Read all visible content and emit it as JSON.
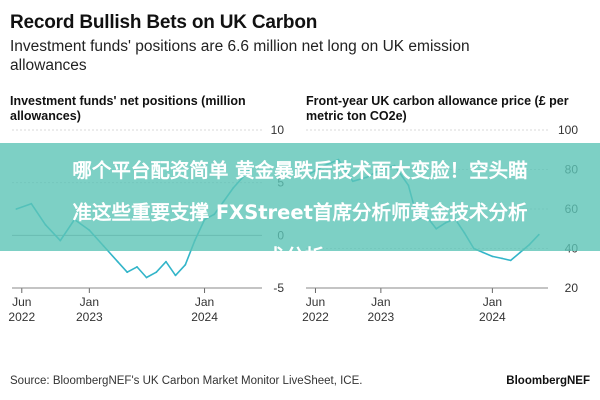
{
  "header": {
    "title": "Record Bullish Bets on UK Carbon",
    "subtitle": "Investment funds' positions are 6.6 million net long on UK emission allowances"
  },
  "overlay": {
    "line1": "哪个平台配资简单 黄金暴跌后技术面大变脸！空头瞄",
    "line2": "准这些重要支撑 FXStreet首席分析师黄金技术分析",
    "line3": "术分析"
  },
  "footer": {
    "source": "Source: BloombergNEF's UK Carbon Market Monitor LiveSheet, ICE.",
    "brand": "BloombergNEF"
  },
  "colors": {
    "line": "#33b5c9",
    "grid": "#cccccc",
    "zero": "#999999",
    "banner": "#5cc4b6"
  },
  "chart_data": [
    {
      "type": "line",
      "title": "Investment funds' net positions (million allowances)",
      "x_ticks": [
        {
          "date": "2022-06-01",
          "label": "Jun",
          "label2": "2022"
        },
        {
          "date": "2023-01-01",
          "label": "Jan",
          "label2": "2023"
        },
        {
          "date": "2024-01-01",
          "label": "Jan",
          "label2": "2024"
        }
      ],
      "xlim": [
        "2022-05-01",
        "2024-07-01"
      ],
      "ylim": [
        -5,
        10
      ],
      "y_ticks": [
        -5,
        0,
        5,
        10
      ],
      "grid": true,
      "series": [
        {
          "x": [
            "2022-05-15",
            "2022-07-01",
            "2022-08-15",
            "2022-10-01",
            "2022-11-15",
            "2023-01-01",
            "2023-02-15",
            "2023-04-01",
            "2023-05-01",
            "2023-06-01",
            "2023-07-01",
            "2023-08-01",
            "2023-09-01",
            "2023-10-01",
            "2023-11-01",
            "2023-12-01",
            "2024-01-01",
            "2024-02-01",
            "2024-03-01",
            "2024-04-01",
            "2024-05-01",
            "2024-06-01"
          ],
          "y": [
            2.5,
            3.0,
            1.0,
            -0.5,
            1.5,
            0.5,
            -1.0,
            -2.5,
            -3.5,
            -3.0,
            -4.0,
            -3.5,
            -2.5,
            -3.8,
            -2.8,
            -0.5,
            1.5,
            2.0,
            3.2,
            4.5,
            5.5,
            6.6
          ]
        }
      ]
    },
    {
      "type": "line",
      "title": "Front-year UK carbon allowance price (£ per metric ton CO2e)",
      "x_ticks": [
        {
          "date": "2022-06-01",
          "label": "Jun",
          "label2": "2022"
        },
        {
          "date": "2023-01-01",
          "label": "Jan",
          "label2": "2023"
        },
        {
          "date": "2024-01-01",
          "label": "Jan",
          "label2": "2024"
        }
      ],
      "xlim": [
        "2022-05-01",
        "2024-07-01"
      ],
      "ylim": [
        20,
        100
      ],
      "y_ticks": [
        20,
        40,
        60,
        80,
        100
      ],
      "grid": true,
      "series": [
        {
          "x": [
            "2022-05-15",
            "2022-07-01",
            "2022-08-15",
            "2022-10-01",
            "2022-11-15",
            "2023-01-01",
            "2023-02-15",
            "2023-04-01",
            "2023-05-01",
            "2023-06-01",
            "2023-07-01",
            "2023-08-01",
            "2023-09-01",
            "2023-10-01",
            "2023-11-01",
            "2023-12-01",
            "2024-01-01",
            "2024-02-01",
            "2024-03-01",
            "2024-04-01",
            "2024-05-01",
            "2024-06-01"
          ],
          "y": [
            78,
            82,
            85,
            74,
            76,
            80,
            82,
            72,
            55,
            56,
            50,
            53,
            55,
            48,
            40,
            38,
            36,
            35,
            34,
            38,
            42,
            47
          ]
        }
      ]
    }
  ]
}
